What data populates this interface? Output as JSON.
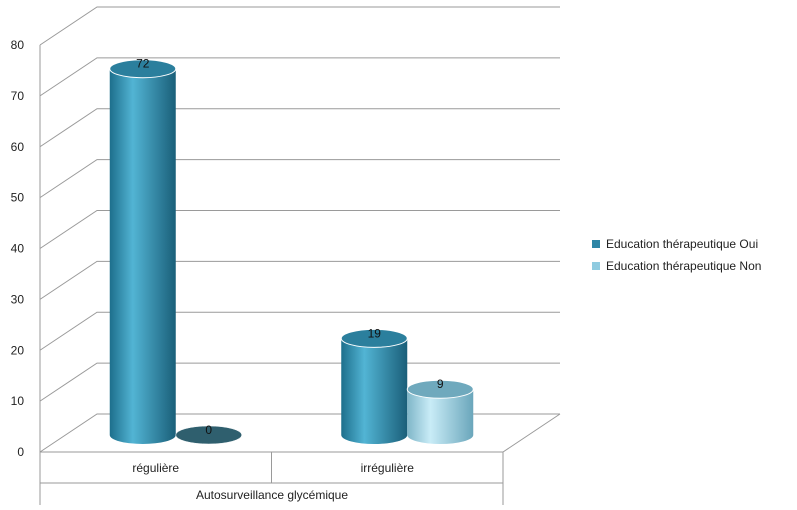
{
  "chart_data": {
    "type": "bar",
    "title": "",
    "xlabel": "Autosurveillance glycémique",
    "ylabel": "",
    "categories": [
      "régulière",
      "irrégulière"
    ],
    "series": [
      {
        "name": "Education thérapeutique Oui",
        "values": [
          72,
          19
        ],
        "color": "#2e86a6"
      },
      {
        "name": "Education thérapeutique Non",
        "values": [
          0,
          9
        ],
        "color": "#8fcbe0"
      }
    ],
    "ylim": [
      0,
      80
    ],
    "yticks": [
      0,
      10,
      20,
      30,
      40,
      50,
      60,
      70,
      80
    ],
    "grid": true,
    "legend_position": "right",
    "bar_shape": "3d-cylinder",
    "data_labels": true
  }
}
